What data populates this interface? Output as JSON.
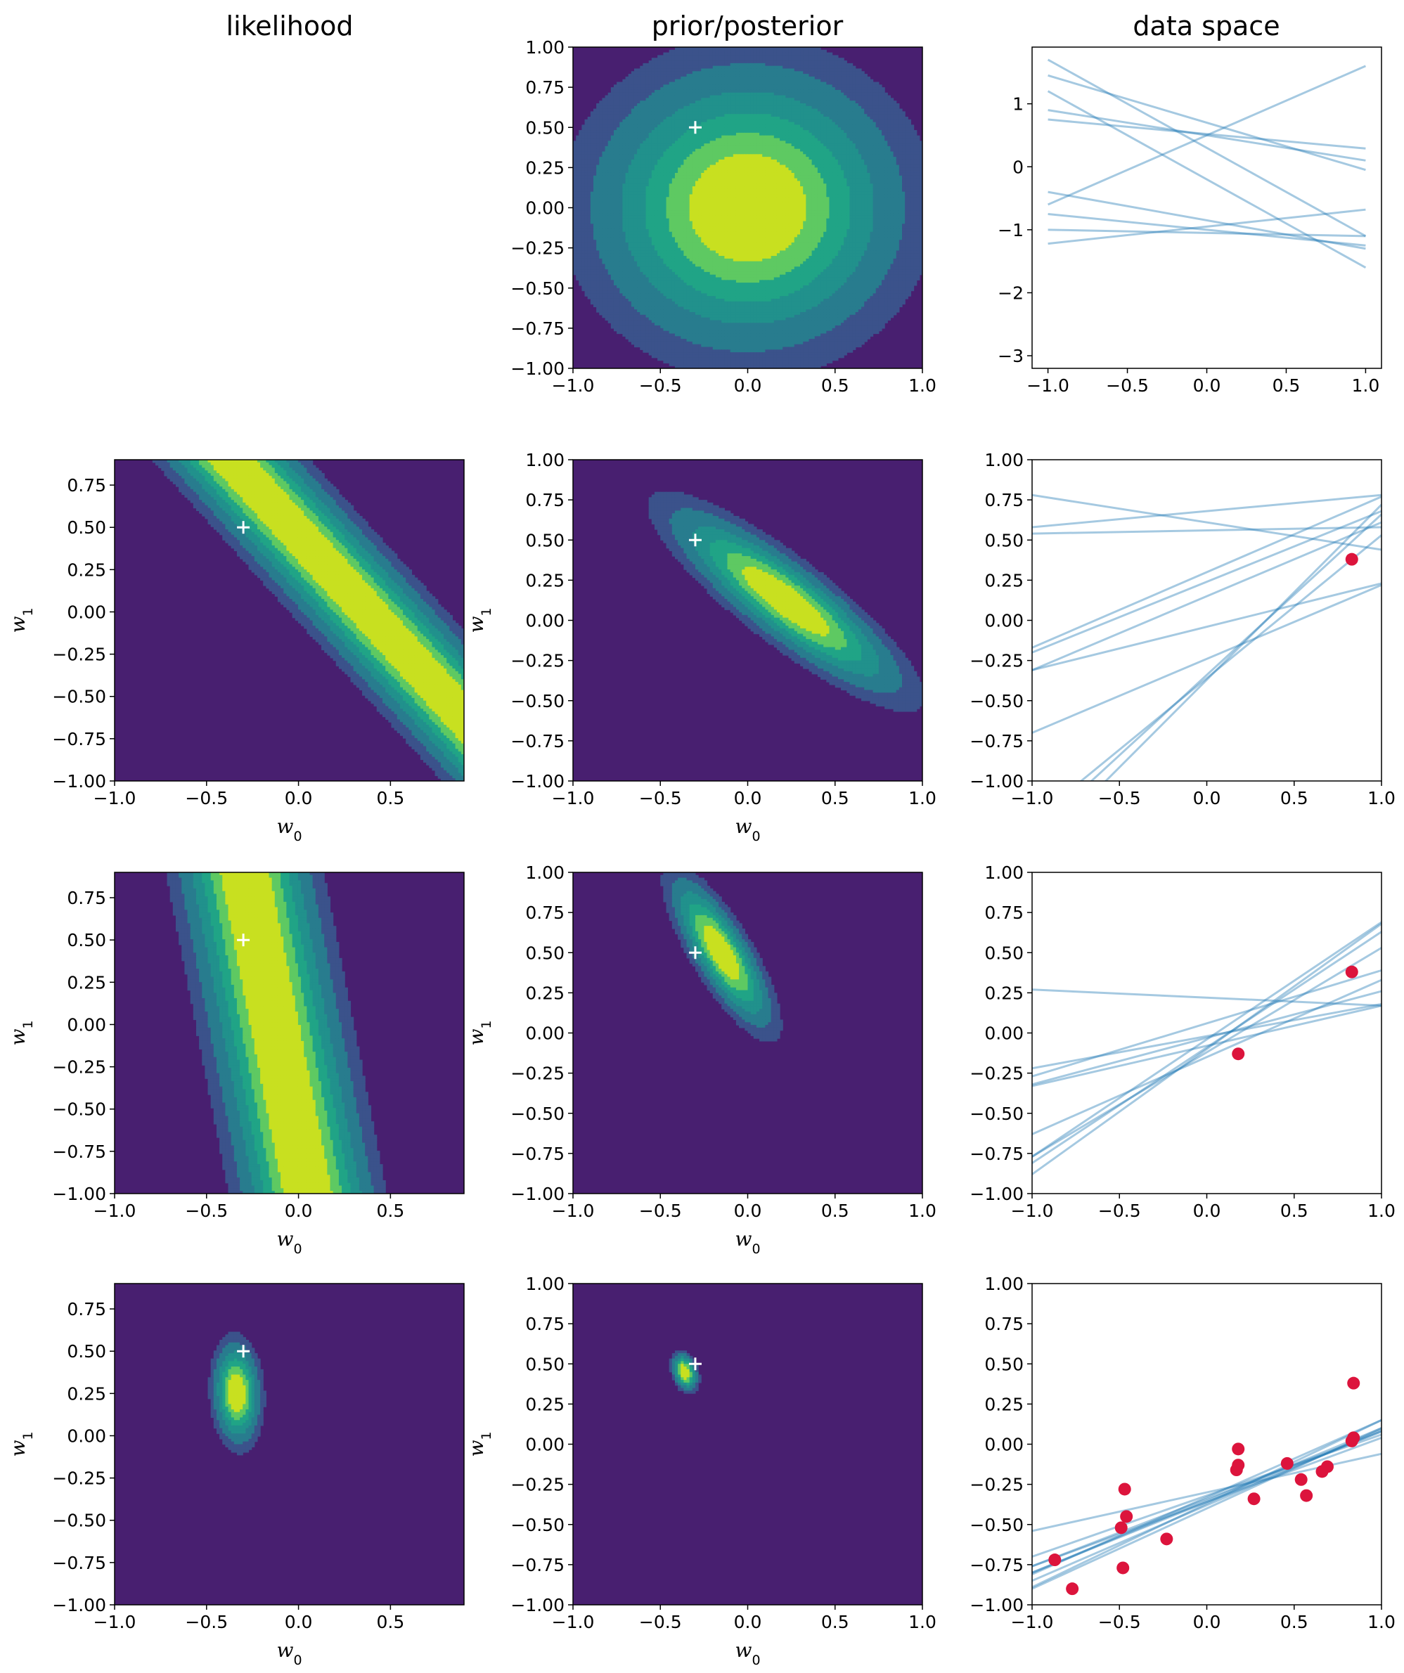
{
  "figure": {
    "column_titles": [
      "likelihood",
      "prior/posterior",
      "data space"
    ],
    "xlabel": "w0",
    "ylabel": "w1"
  },
  "colors": {
    "viridis": [
      "#440154",
      "#481f70",
      "#443983",
      "#3b528b",
      "#31688e",
      "#287c8e",
      "#21918c",
      "#20a486",
      "#35b779",
      "#5ec962",
      "#90d743",
      "#c8e020",
      "#fde725"
    ],
    "line_color": "#1f77b4",
    "point_color": "#dc143c",
    "true_marker_color": "#ffffff"
  },
  "true_w": [
    -0.3,
    0.5
  ],
  "chart_data": [
    {
      "type": "heatmap",
      "row": 0,
      "column": "prior/posterior",
      "distribution": "prior",
      "xlim": [
        -1,
        1
      ],
      "ylim": [
        -1,
        1
      ],
      "center": [
        0,
        0
      ],
      "sd": [
        0.5,
        0.5
      ],
      "rho": 0,
      "true_marker": [
        -0.3,
        0.5
      ],
      "xticks": [
        "−1.0",
        "−0.5",
        "0.0",
        "0.5",
        "1.0"
      ],
      "yticks": [
        "−1.00",
        "−0.75",
        "−0.50",
        "−0.25",
        "0.00",
        "0.25",
        "0.50",
        "0.75",
        "1.00"
      ]
    },
    {
      "type": "line",
      "row": 0,
      "column": "data space",
      "xlim": [
        -1.1,
        1.1
      ],
      "ylim": [
        -3.2,
        1.9
      ],
      "xticks": [
        "−1.0",
        "−0.5",
        "0.0",
        "0.5",
        "1.0"
      ],
      "yticks": [
        "−3",
        "−2",
        "−1",
        "0",
        "1"
      ],
      "lines": [
        [
          -0.2,
          -1.4
        ],
        [
          0.5,
          1.1
        ],
        [
          0.3,
          -1.4
        ],
        [
          0.7,
          -0.75
        ],
        [
          0.5,
          -0.4
        ],
        [
          0.52,
          -0.23
        ],
        [
          -0.85,
          -0.45
        ],
        [
          -0.95,
          0.27
        ],
        [
          -1.05,
          -0.05
        ],
        [
          -1.0,
          -0.25
        ]
      ],
      "points": []
    },
    {
      "type": "heatmap",
      "row": 1,
      "column": "likelihood",
      "distribution": "likelihood",
      "xlim": [
        -1,
        0.9
      ],
      "ylim": [
        -1,
        0.9
      ],
      "data_points": [
        [
          0.83,
          0.38
        ]
      ],
      "noise": 0.2,
      "true_marker": [
        -0.3,
        0.5
      ],
      "xticks": [
        "−1.0",
        "−0.5",
        "0.0",
        "0.5"
      ],
      "yticks": [
        "−1.00",
        "−0.75",
        "−0.50",
        "−0.25",
        "0.00",
        "0.25",
        "0.50",
        "0.75"
      ],
      "xlabel": "w0",
      "ylabel": "w1"
    },
    {
      "type": "heatmap",
      "row": 1,
      "column": "prior/posterior",
      "distribution": "posterior",
      "xlim": [
        -1,
        1
      ],
      "ylim": [
        -1,
        1
      ],
      "center": [
        0.22,
        0.12
      ],
      "sd": [
        0.37,
        0.32
      ],
      "rho": -0.87,
      "true_marker": [
        -0.3,
        0.5
      ],
      "xticks": [
        "−1.0",
        "−0.5",
        "0.0",
        "0.5",
        "1.0"
      ],
      "yticks": [
        "−1.00",
        "−0.75",
        "−0.50",
        "−0.25",
        "0.00",
        "0.25",
        "0.50",
        "0.75",
        "1.00"
      ],
      "xlabel": "w0",
      "ylabel": "w1"
    },
    {
      "type": "line",
      "row": 1,
      "column": "data space",
      "xlim": [
        -1,
        1
      ],
      "ylim": [
        -1,
        1
      ],
      "xticks": [
        "−1.0",
        "−0.5",
        "0.0",
        "0.5",
        "1.0"
      ],
      "yticks": [
        "−1.00",
        "−0.75",
        "−0.50",
        "−0.25",
        "0.00",
        "0.25",
        "0.50",
        "0.75",
        "1.00"
      ],
      "lines": [
        [
          0.68,
          0.1
        ],
        [
          0.56,
          0.02
        ],
        [
          0.24,
          0.44
        ],
        [
          0.61,
          -0.17
        ],
        [
          0.3,
          0.47
        ],
        [
          0.15,
          0.46
        ],
        [
          -0.04,
          0.27
        ],
        [
          -0.24,
          0.46
        ],
        [
          -0.37,
          1.09
        ],
        [
          -0.34,
          1.0
        ],
        [
          -0.36,
          0.89
        ]
      ],
      "points": [
        [
          0.83,
          0.38
        ]
      ]
    },
    {
      "type": "heatmap",
      "row": 2,
      "column": "likelihood",
      "distribution": "likelihood",
      "xlim": [
        -1,
        0.9
      ],
      "ylim": [
        -1,
        0.9
      ],
      "data_points": [
        [
          0.18,
          -0.13
        ]
      ],
      "noise": 0.2,
      "true_marker": [
        -0.3,
        0.5
      ],
      "xticks": [
        "−1.0",
        "−0.5",
        "0.0",
        "0.5"
      ],
      "yticks": [
        "−1.00",
        "−0.75",
        "−0.50",
        "−0.25",
        "0.00",
        "0.25",
        "0.50",
        "0.75"
      ],
      "xlabel": "w0",
      "ylabel": "w1"
    },
    {
      "type": "heatmap",
      "row": 2,
      "column": "prior/posterior",
      "distribution": "posterior",
      "xlim": [
        -1,
        1
      ],
      "ylim": [
        -1,
        1
      ],
      "center": [
        -0.15,
        0.5
      ],
      "sd": [
        0.16,
        0.26
      ],
      "rho": -0.8,
      "true_marker": [
        -0.3,
        0.5
      ],
      "xticks": [
        "−1.0",
        "−0.5",
        "0.0",
        "0.5",
        "1.0"
      ],
      "yticks": [
        "−1.00",
        "−0.75",
        "−0.50",
        "−0.25",
        "0.00",
        "0.25",
        "0.50",
        "0.75",
        "1.00"
      ],
      "xlabel": "w0",
      "ylabel": "w1"
    },
    {
      "type": "line",
      "row": 2,
      "column": "data space",
      "xlim": [
        -1,
        1
      ],
      "ylim": [
        -1,
        1
      ],
      "xticks": [
        "−1.0",
        "−0.5",
        "0.0",
        "0.5",
        "1.0"
      ],
      "yticks": [
        "−1.00",
        "−0.75",
        "−0.50",
        "−0.25",
        "0.00",
        "0.25",
        "0.50",
        "0.75",
        "1.00"
      ],
      "lines": [
        [
          0.22,
          -0.05
        ],
        [
          -0.08,
          0.25
        ],
        [
          -0.02,
          0.2
        ],
        [
          0.06,
          0.33
        ],
        [
          -0.03,
          0.29
        ],
        [
          -0.15,
          0.48
        ],
        [
          -0.12,
          0.65
        ],
        [
          -0.04,
          0.73
        ],
        [
          -0.1,
          0.78
        ],
        [
          -0.09,
          0.72
        ]
      ],
      "points": [
        [
          0.83,
          0.38
        ],
        [
          0.18,
          -0.13
        ]
      ]
    },
    {
      "type": "heatmap",
      "row": 3,
      "column": "likelihood",
      "distribution": "likelihood",
      "xlim": [
        -1,
        0.9
      ],
      "ylim": [
        -1,
        0.9
      ],
      "data_points": [
        [
          -0.47,
          -0.45
        ],
        [
          -0.48,
          -0.5
        ],
        [
          0.54,
          -0.22
        ],
        [
          0.57,
          -0.31
        ],
        [
          0.27,
          -0.33
        ],
        [
          0.17,
          -0.16
        ],
        [
          -0.48,
          -0.51
        ],
        [
          0.18,
          -0.13
        ]
      ],
      "noise": 0.2,
      "true_marker": [
        -0.3,
        0.5
      ],
      "xticks": [
        "−1.0",
        "−0.5",
        "0.0",
        "0.5"
      ],
      "yticks": [
        "−1.00",
        "−0.75",
        "−0.50",
        "−0.25",
        "0.00",
        "0.25",
        "0.50",
        "0.75"
      ],
      "xlabel": "w0",
      "ylabel": "w1"
    },
    {
      "type": "heatmap",
      "row": 3,
      "column": "prior/posterior",
      "distribution": "posterior",
      "xlim": [
        -1,
        1
      ],
      "ylim": [
        -1,
        1
      ],
      "center": [
        -0.36,
        0.45
      ],
      "sd": [
        0.04,
        0.065
      ],
      "rho": -0.3,
      "true_marker": [
        -0.3,
        0.5
      ],
      "xticks": [
        "−1.0",
        "−0.5",
        "0.0",
        "0.5",
        "1.0"
      ],
      "yticks": [
        "−1.00",
        "−0.75",
        "−0.50",
        "−0.25",
        "0.00",
        "0.25",
        "0.50",
        "0.75",
        "1.00"
      ],
      "xlabel": "w0",
      "ylabel": "w1"
    },
    {
      "type": "line",
      "row": 3,
      "column": "data space",
      "xlim": [
        -1,
        1
      ],
      "ylim": [
        -1,
        1
      ],
      "xticks": [
        "−1.0",
        "−0.5",
        "0.0",
        "0.5",
        "1.0"
      ],
      "yticks": [
        "−1.00",
        "−0.75",
        "−0.50",
        "−0.25",
        "0.00",
        "0.25",
        "0.50",
        "0.75",
        "1.00"
      ],
      "lines": [
        [
          -0.3,
          0.24
        ],
        [
          -0.32,
          0.38
        ],
        [
          -0.36,
          0.44
        ],
        [
          -0.38,
          0.47
        ],
        [
          -0.4,
          0.5
        ],
        [
          -0.35,
          0.45
        ],
        [
          -0.34,
          0.42
        ],
        [
          -0.37,
          0.52
        ],
        [
          -0.33,
          0.48
        ],
        [
          -0.36,
          0.4
        ]
      ],
      "points": [
        [
          0.84,
          0.38
        ],
        [
          -0.47,
          -0.28
        ],
        [
          -0.87,
          -0.72
        ],
        [
          -0.77,
          -0.9
        ],
        [
          -0.49,
          -0.52
        ],
        [
          -0.48,
          -0.77
        ],
        [
          -0.46,
          -0.45
        ],
        [
          -0.23,
          -0.59
        ],
        [
          0.18,
          -0.03
        ],
        [
          0.18,
          -0.13
        ],
        [
          0.17,
          -0.16
        ],
        [
          0.27,
          -0.34
        ],
        [
          0.46,
          -0.12
        ],
        [
          0.54,
          -0.22
        ],
        [
          0.57,
          -0.32
        ],
        [
          0.66,
          -0.17
        ],
        [
          0.69,
          -0.14
        ],
        [
          0.83,
          0.02
        ],
        [
          0.84,
          0.04
        ]
      ]
    }
  ]
}
